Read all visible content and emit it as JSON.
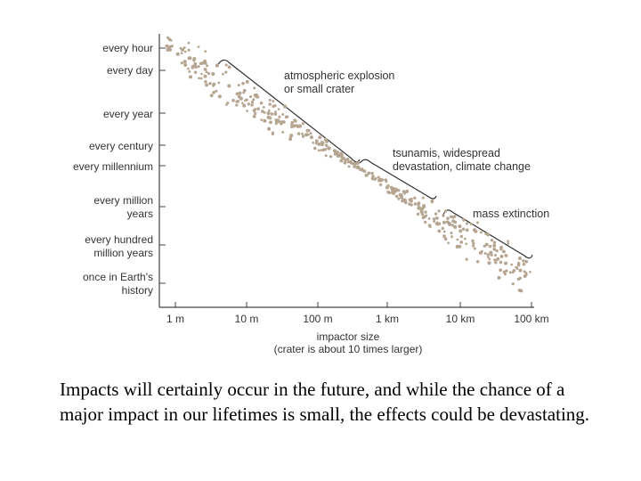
{
  "chart_data": {
    "type": "scatter",
    "title": "",
    "xlabel": "impactor size",
    "xlabel_note": "(crater is about 10 times larger)",
    "x_scale": "log",
    "xlim_m": [
      1,
      100000
    ],
    "x_ticks": [
      {
        "value_m": 1,
        "label": "1 m"
      },
      {
        "value_m": 10,
        "label": "10 m"
      },
      {
        "value_m": 100,
        "label": "100 m"
      },
      {
        "value_m": 1000,
        "label": "1 km"
      },
      {
        "value_m": 10000,
        "label": "10 km"
      },
      {
        "value_m": 100000,
        "label": "100 km"
      }
    ],
    "ylabel": "",
    "y_ticks": [
      {
        "lines": [
          "every hour"
        ],
        "rank": 0
      },
      {
        "lines": [
          "every day"
        ],
        "rank": 1
      },
      {
        "lines": [
          "every year"
        ],
        "rank": 2
      },
      {
        "lines": [
          "every century"
        ],
        "rank": 3
      },
      {
        "lines": [
          "every millennium"
        ],
        "rank": 4
      },
      {
        "lines": [
          "every million",
          "years"
        ],
        "rank": 5
      },
      {
        "lines": [
          "every hundred",
          "million years"
        ],
        "rank": 6
      },
      {
        "lines": [
          "once in Earth's",
          "history"
        ],
        "rank": 7
      }
    ],
    "trend": {
      "description": "impact frequency decreases as impactor size increases",
      "start_m": 1,
      "end_m": 100000
    },
    "annotations": [
      {
        "lines": [
          "atmospheric explosion",
          "or small crater"
        ],
        "from_m": 4,
        "to_m": 600
      },
      {
        "lines": [
          "tsunamis, widespread",
          "devastation, climate change"
        ],
        "from_m": 600,
        "to_m": 6000
      },
      {
        "lines": [
          "mass extinction"
        ],
        "from_m": 6000,
        "to_m": 100000
      }
    ],
    "point_color": "#b5a591"
  },
  "caption": "Impacts will certainly occur in the future, and while the chance of a major impact in our lifetimes is small, the effects could be devastating."
}
